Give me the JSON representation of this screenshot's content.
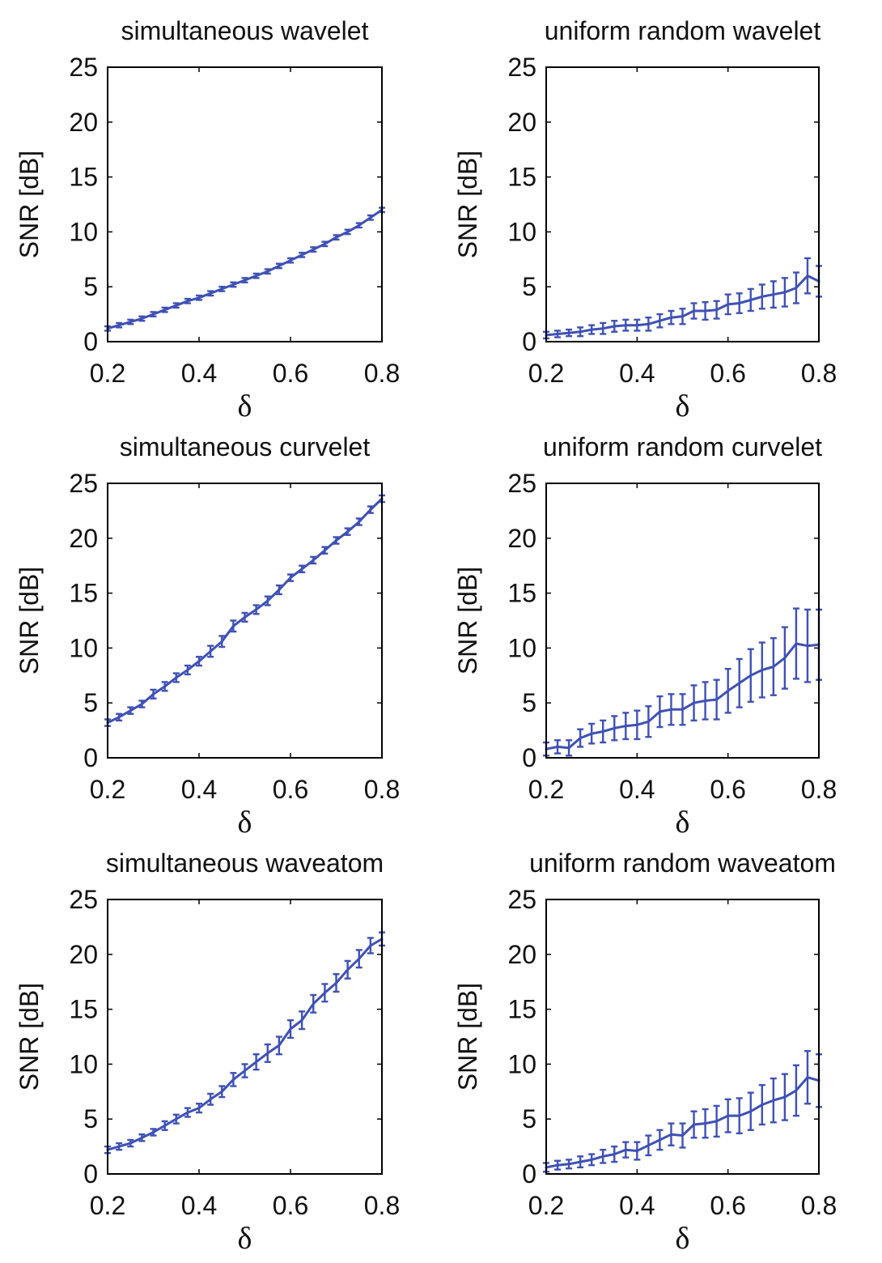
{
  "chart_data": [
    {
      "type": "line",
      "title": "simultaneous wavelet",
      "xlabel": "δ",
      "ylabel": "SNR [dB]",
      "xlim": [
        0.2,
        0.8
      ],
      "ylim": [
        0,
        25
      ],
      "xticks": [
        "0.2",
        "0.4",
        "0.6",
        "0.8"
      ],
      "yticks": [
        "0",
        "5",
        "10",
        "15",
        "20",
        "25"
      ],
      "color": "#3f51b5",
      "x": [
        0.2,
        0.225,
        0.25,
        0.275,
        0.3,
        0.325,
        0.35,
        0.375,
        0.4,
        0.425,
        0.45,
        0.475,
        0.5,
        0.525,
        0.55,
        0.575,
        0.6,
        0.625,
        0.65,
        0.675,
        0.7,
        0.725,
        0.75,
        0.775,
        0.8
      ],
      "values": [
        1.2,
        1.5,
        1.8,
        2.1,
        2.5,
        2.9,
        3.3,
        3.7,
        4.0,
        4.4,
        4.8,
        5.2,
        5.6,
        6.0,
        6.4,
        6.9,
        7.4,
        7.9,
        8.4,
        8.9,
        9.5,
        10.0,
        10.6,
        11.3,
        12.0
      ],
      "errors": [
        0.2,
        0.2,
        0.2,
        0.2,
        0.2,
        0.2,
        0.2,
        0.2,
        0.2,
        0.2,
        0.2,
        0.2,
        0.2,
        0.2,
        0.2,
        0.2,
        0.2,
        0.2,
        0.2,
        0.2,
        0.2,
        0.2,
        0.2,
        0.2,
        0.2
      ]
    },
    {
      "type": "line",
      "title": "uniform random wavelet",
      "xlabel": "δ",
      "ylabel": "SNR [dB]",
      "xlim": [
        0.2,
        0.8
      ],
      "ylim": [
        0,
        25
      ],
      "xticks": [
        "0.2",
        "0.4",
        "0.6",
        "0.8"
      ],
      "yticks": [
        "0",
        "5",
        "10",
        "15",
        "20",
        "25"
      ],
      "color": "#3f51b5",
      "x": [
        0.2,
        0.225,
        0.25,
        0.275,
        0.3,
        0.325,
        0.35,
        0.375,
        0.4,
        0.425,
        0.45,
        0.475,
        0.5,
        0.525,
        0.55,
        0.575,
        0.6,
        0.625,
        0.65,
        0.675,
        0.7,
        0.725,
        0.75,
        0.775,
        0.8
      ],
      "values": [
        0.6,
        0.7,
        0.8,
        0.9,
        1.1,
        1.2,
        1.4,
        1.5,
        1.5,
        1.6,
        1.9,
        2.2,
        2.3,
        2.8,
        2.8,
        2.9,
        3.4,
        3.5,
        3.8,
        4.1,
        4.3,
        4.5,
        4.9,
        6.0,
        5.5
      ],
      "errors": [
        0.3,
        0.3,
        0.3,
        0.4,
        0.4,
        0.5,
        0.5,
        0.5,
        0.5,
        0.6,
        0.6,
        0.6,
        0.7,
        0.7,
        0.8,
        0.8,
        0.9,
        0.9,
        1.0,
        1.1,
        1.2,
        1.3,
        1.4,
        1.6,
        1.4
      ]
    },
    {
      "type": "line",
      "title": "simultaneous curvelet",
      "xlabel": "δ",
      "ylabel": "SNR [dB]",
      "xlim": [
        0.2,
        0.8
      ],
      "ylim": [
        0,
        25
      ],
      "xticks": [
        "0.2",
        "0.4",
        "0.6",
        "0.8"
      ],
      "yticks": [
        "0",
        "5",
        "10",
        "15",
        "20",
        "25"
      ],
      "color": "#3f51b5",
      "x": [
        0.2,
        0.225,
        0.25,
        0.275,
        0.3,
        0.325,
        0.35,
        0.375,
        0.4,
        0.425,
        0.45,
        0.475,
        0.5,
        0.525,
        0.55,
        0.575,
        0.6,
        0.625,
        0.65,
        0.675,
        0.7,
        0.725,
        0.75,
        0.775,
        0.8
      ],
      "values": [
        3.2,
        3.7,
        4.3,
        4.9,
        5.8,
        6.5,
        7.3,
        8.0,
        8.8,
        9.7,
        10.6,
        12.0,
        12.8,
        13.5,
        14.3,
        15.3,
        16.4,
        17.2,
        18.0,
        18.9,
        19.8,
        20.6,
        21.5,
        22.6,
        23.6
      ],
      "errors": [
        0.3,
        0.3,
        0.3,
        0.3,
        0.4,
        0.4,
        0.4,
        0.4,
        0.4,
        0.5,
        0.5,
        0.5,
        0.4,
        0.4,
        0.4,
        0.4,
        0.3,
        0.3,
        0.3,
        0.3,
        0.3,
        0.3,
        0.3,
        0.3,
        0.3
      ]
    },
    {
      "type": "line",
      "title": "uniform random curvelet",
      "xlabel": "δ",
      "ylabel": "SNR [dB]",
      "xlim": [
        0.2,
        0.8
      ],
      "ylim": [
        0,
        25
      ],
      "xticks": [
        "0.2",
        "0.4",
        "0.6",
        "0.8"
      ],
      "yticks": [
        "0",
        "5",
        "10",
        "15",
        "20",
        "25"
      ],
      "color": "#3f51b5",
      "x": [
        0.2,
        0.225,
        0.25,
        0.275,
        0.3,
        0.325,
        0.35,
        0.375,
        0.4,
        0.425,
        0.45,
        0.475,
        0.5,
        0.525,
        0.55,
        0.575,
        0.6,
        0.625,
        0.65,
        0.675,
        0.7,
        0.725,
        0.75,
        0.775,
        0.8
      ],
      "values": [
        0.8,
        1.0,
        0.9,
        1.8,
        2.2,
        2.4,
        2.7,
        2.9,
        3.0,
        3.3,
        4.2,
        4.4,
        4.4,
        5.0,
        5.2,
        5.3,
        6.1,
        6.8,
        7.5,
        8.0,
        8.3,
        9.1,
        10.4,
        10.2,
        10.3
      ],
      "errors": [
        0.6,
        0.6,
        0.7,
        0.8,
        0.9,
        1.0,
        1.1,
        1.2,
        1.3,
        1.4,
        1.4,
        1.4,
        1.4,
        1.6,
        1.7,
        1.8,
        2.0,
        2.2,
        2.4,
        2.5,
        2.6,
        2.8,
        3.2,
        3.3,
        3.2
      ]
    },
    {
      "type": "line",
      "title": "simultaneous waveatom",
      "xlabel": "δ",
      "ylabel": "SNR [dB]",
      "xlim": [
        0.2,
        0.8
      ],
      "ylim": [
        0,
        25
      ],
      "xticks": [
        "0.2",
        "0.4",
        "0.6",
        "0.8"
      ],
      "yticks": [
        "0",
        "5",
        "10",
        "15",
        "20",
        "25"
      ],
      "color": "#3f51b5",
      "x": [
        0.2,
        0.225,
        0.25,
        0.275,
        0.3,
        0.325,
        0.35,
        0.375,
        0.4,
        0.425,
        0.45,
        0.475,
        0.5,
        0.525,
        0.55,
        0.575,
        0.6,
        0.625,
        0.65,
        0.675,
        0.7,
        0.725,
        0.75,
        0.775,
        0.8
      ],
      "values": [
        2.2,
        2.5,
        2.8,
        3.3,
        3.8,
        4.4,
        5.0,
        5.6,
        6.0,
        6.8,
        7.5,
        8.6,
        9.4,
        10.2,
        11.0,
        11.7,
        13.2,
        14.0,
        15.5,
        16.5,
        17.4,
        18.6,
        19.6,
        20.8,
        21.4
      ],
      "errors": [
        0.3,
        0.3,
        0.3,
        0.3,
        0.3,
        0.4,
        0.4,
        0.4,
        0.4,
        0.5,
        0.5,
        0.6,
        0.6,
        0.7,
        0.8,
        0.8,
        0.8,
        0.8,
        0.8,
        0.8,
        0.8,
        0.8,
        0.8,
        0.7,
        0.6
      ]
    },
    {
      "type": "line",
      "title": "uniform random waveatom",
      "xlabel": "δ",
      "ylabel": "SNR [dB]",
      "xlim": [
        0.2,
        0.8
      ],
      "ylim": [
        0,
        25
      ],
      "xticks": [
        "0.2",
        "0.4",
        "0.6",
        "0.8"
      ],
      "yticks": [
        "0",
        "5",
        "10",
        "15",
        "20",
        "25"
      ],
      "color": "#3f51b5",
      "x": [
        0.2,
        0.225,
        0.25,
        0.275,
        0.3,
        0.325,
        0.35,
        0.375,
        0.4,
        0.425,
        0.45,
        0.475,
        0.5,
        0.525,
        0.55,
        0.575,
        0.6,
        0.625,
        0.65,
        0.675,
        0.7,
        0.725,
        0.75,
        0.775,
        0.8
      ],
      "values": [
        0.6,
        0.8,
        0.9,
        1.1,
        1.3,
        1.6,
        1.8,
        2.2,
        2.1,
        2.6,
        3.1,
        3.6,
        3.5,
        4.5,
        4.6,
        4.8,
        5.3,
        5.3,
        5.7,
        6.3,
        6.7,
        7.0,
        7.6,
        8.8,
        8.5
      ],
      "errors": [
        0.4,
        0.4,
        0.4,
        0.5,
        0.5,
        0.6,
        0.7,
        0.7,
        0.8,
        0.9,
        0.9,
        1.0,
        1.1,
        1.2,
        1.3,
        1.4,
        1.5,
        1.6,
        1.7,
        1.8,
        2.0,
        2.1,
        2.3,
        2.4,
        2.4
      ]
    }
  ]
}
